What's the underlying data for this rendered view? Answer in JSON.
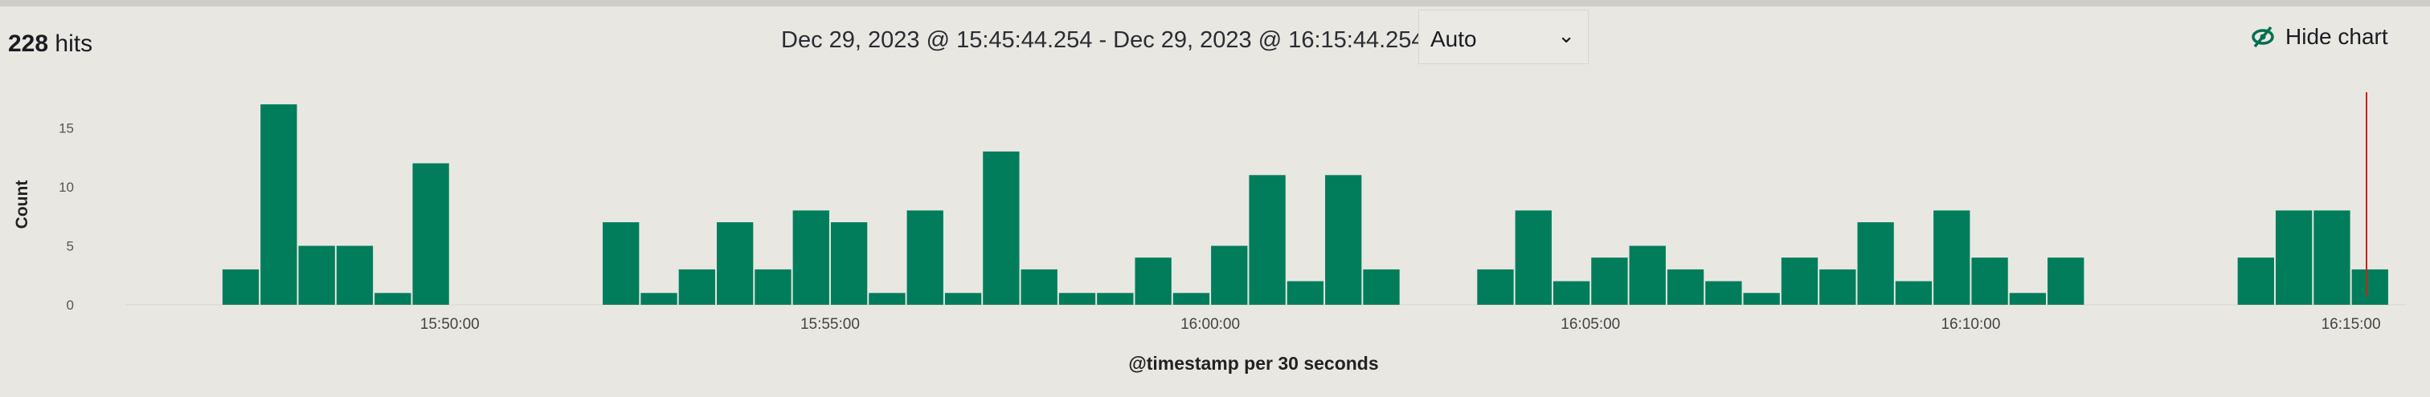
{
  "header": {
    "hits_count": "228",
    "hits_label": "hits",
    "time_range": "Dec 29, 2023 @ 15:45:44.254 - Dec 29, 2023 @ 16:15:44.254",
    "interval_value": "Auto",
    "hide_chart_label": "Hide chart",
    "hide_chart_icon": "eye-slash-icon"
  },
  "chart_data": {
    "type": "bar",
    "title": "",
    "xlabel": "@timestamp per 30 seconds",
    "ylabel": "Count",
    "xlim": [
      "15:45:44",
      "16:15:44"
    ],
    "ylim": [
      0,
      17
    ],
    "yticks": [
      "0",
      "5",
      "10",
      "15"
    ],
    "xticks": [
      "15:50:00",
      "15:55:00",
      "16:00:00",
      "16:05:00",
      "16:10:00",
      "16:15:00"
    ],
    "bar_color": "#017d5b",
    "now_marker_color": "#bd271e",
    "grid": false,
    "x": [
      "15:47:00",
      "15:47:30",
      "15:48:00",
      "15:48:30",
      "15:49:00",
      "15:49:30",
      "15:52:00",
      "15:52:30",
      "15:53:00",
      "15:53:30",
      "15:54:00",
      "15:54:30",
      "15:55:00",
      "15:55:30",
      "15:56:00",
      "15:56:30",
      "15:57:00",
      "15:57:30",
      "15:58:00",
      "15:58:30",
      "15:59:00",
      "15:59:30",
      "16:00:00",
      "16:00:30",
      "16:01:00",
      "16:01:30",
      "16:02:00",
      "16:03:30",
      "16:04:00",
      "16:04:30",
      "16:05:00",
      "16:05:30",
      "16:06:00",
      "16:06:30",
      "16:07:00",
      "16:07:30",
      "16:08:00",
      "16:08:30",
      "16:09:00",
      "16:09:30",
      "16:10:00",
      "16:10:30",
      "16:11:00",
      "16:13:30",
      "16:14:00",
      "16:14:30",
      "16:15:00"
    ],
    "values": [
      3,
      17,
      5,
      5,
      1,
      12,
      7,
      1,
      3,
      7,
      3,
      8,
      7,
      1,
      8,
      1,
      13,
      3,
      1,
      1,
      4,
      1,
      5,
      11,
      2,
      11,
      3,
      3,
      8,
      2,
      4,
      5,
      3,
      2,
      1,
      4,
      3,
      7,
      2,
      8,
      4,
      1,
      4,
      4,
      8,
      8,
      3
    ]
  }
}
